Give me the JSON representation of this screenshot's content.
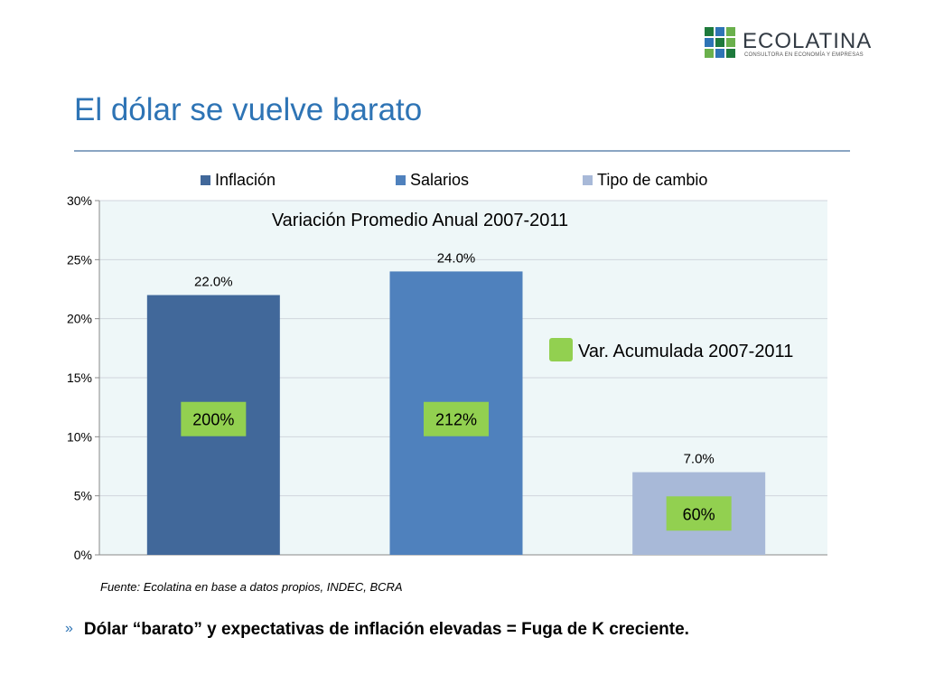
{
  "logo": {
    "name": "ECOLATINA",
    "tagline": "CONSULTORA EN ECONOMÍA Y EMPRESAS",
    "colors": [
      "#1e7a3c",
      "#2e74b5",
      "#6ab04c",
      "#2e74b5",
      "#1e7a3c",
      "#6ab04c",
      "#6ab04c",
      "#2e74b5",
      "#1e7a3c"
    ]
  },
  "slide": {
    "title": "El dólar se vuelve barato",
    "source": "Fuente: Ecolatina en base a datos propios, INDEC, BCRA",
    "bullet_mark": "»",
    "bullet": "Dólar “barato” y expectativas de inflación elevadas = Fuga de K creciente."
  },
  "chart_data": {
    "type": "bar",
    "title": "Variación Promedio Anual 2007-2011",
    "categories": [
      "Inflación",
      "Salarios",
      "Tipo de cambio"
    ],
    "series": [
      {
        "name": "Variación Promedio Anual 2007-2011",
        "values": [
          22.0,
          24.0,
          7.0
        ],
        "labels": [
          "22.0%",
          "24.0%",
          "7.0%"
        ]
      }
    ],
    "colors": [
      "#41689a",
      "#4f81bd",
      "#a8b9d8"
    ],
    "accumulated": {
      "label": "Var. Acumulada 2007-2011",
      "values": [
        "200%",
        "212%",
        "60%"
      ],
      "color": "#92d050"
    },
    "yticks": [
      "0%",
      "5%",
      "10%",
      "15%",
      "20%",
      "25%",
      "30%"
    ],
    "ylim": [
      0,
      30
    ],
    "grid": true,
    "plot_background": "#eef7f8",
    "legend_position": "top"
  }
}
